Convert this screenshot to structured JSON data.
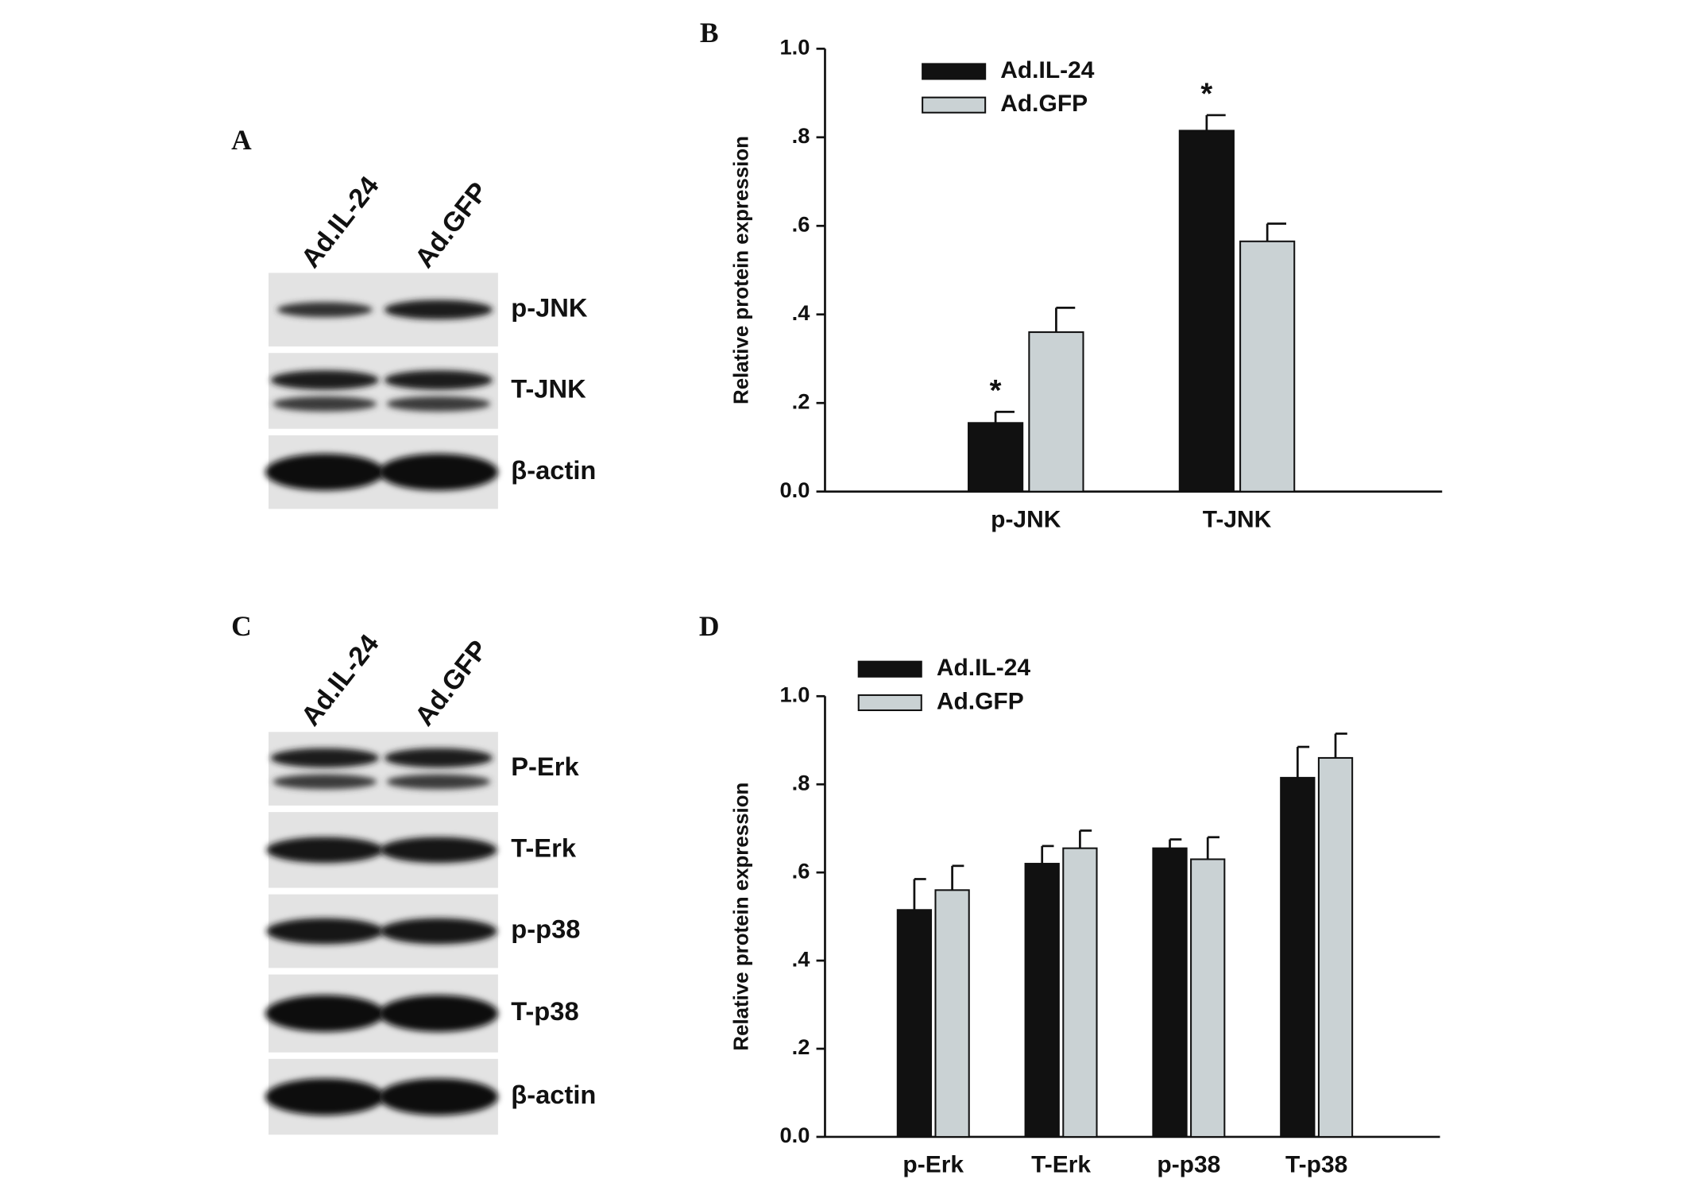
{
  "blots": [
    {
      "panel": "A",
      "lanes": [
        "Ad.IL-24",
        "Ad.GFP"
      ],
      "rows": [
        "p-JNK",
        "T-JNK",
        "β-actin"
      ]
    },
    {
      "panel": "C",
      "lanes": [
        "Ad.IL-24",
        "Ad.GFP"
      ],
      "rows": [
        "P-Erk",
        "T-Erk",
        "p-p38",
        "T-p38",
        "β-actin"
      ]
    }
  ],
  "chart_data": [
    {
      "type": "bar",
      "panel": "B",
      "y_label": "Relative protein expression",
      "categories": [
        "p-JNK",
        "T-JNK"
      ],
      "series": [
        {
          "name": "Ad.IL-24",
          "color": "#111111",
          "values": [
            0.155,
            0.815
          ],
          "errors": [
            0.025,
            0.035
          ],
          "significance": [
            "*",
            "*"
          ]
        },
        {
          "name": "Ad.GFP",
          "color": "#cad2d4",
          "values": [
            0.36,
            0.565
          ],
          "errors": [
            0.055,
            0.04
          ]
        }
      ],
      "ylim": [
        0,
        1.0
      ],
      "yticks": [
        {
          "value": 0,
          "label": "0.0"
        },
        {
          "value": 0.2,
          "label": ".2"
        },
        {
          "value": 0.4,
          "label": ".4"
        },
        {
          "value": 0.6,
          "label": ".6"
        },
        {
          "value": 0.8,
          "label": ".8"
        },
        {
          "value": 1.0,
          "label": "1.0"
        }
      ],
      "grid": false
    },
    {
      "type": "bar",
      "panel": "D",
      "y_label": "Relative protein expression",
      "categories": [
        "p-Erk",
        "T-Erk",
        "p-p38",
        "T-p38"
      ],
      "series": [
        {
          "name": "Ad.IL-24",
          "color": "#111111",
          "values": [
            0.515,
            0.62,
            0.655,
            0.815
          ],
          "errors": [
            0.07,
            0.04,
            0.02,
            0.07
          ]
        },
        {
          "name": "Ad.GFP",
          "color": "#cad2d4",
          "values": [
            0.56,
            0.655,
            0.63,
            0.86
          ],
          "errors": [
            0.055,
            0.04,
            0.05,
            0.055
          ]
        }
      ],
      "ylim": [
        0,
        1.0
      ],
      "yticks": [
        {
          "value": 0,
          "label": "0.0"
        },
        {
          "value": 0.2,
          "label": ".2"
        },
        {
          "value": 0.4,
          "label": ".4"
        },
        {
          "value": 0.6,
          "label": ".6"
        },
        {
          "value": 0.8,
          "label": ".8"
        },
        {
          "value": 1.0,
          "label": "1.0"
        }
      ],
      "grid": false
    }
  ]
}
